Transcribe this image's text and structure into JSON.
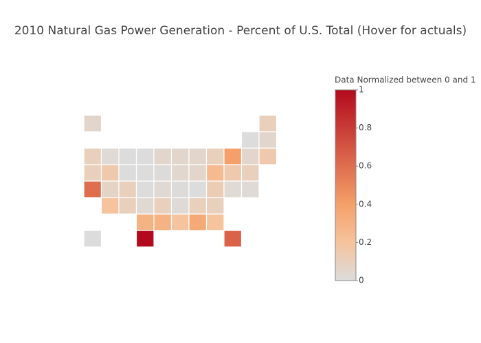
{
  "chart_data": {
    "type": "choropleth",
    "title": "2010 Natural Gas Power Generation - Percent of U.S. Total (Hover for actuals)",
    "colorbar_title": "Data Normalized between 0 and 1",
    "colorscale": [
      [
        0,
        "rgb(220,220,220)"
      ],
      [
        0.2,
        "rgb(245,195,157)"
      ],
      [
        0.4,
        "rgb(245,160,105)"
      ],
      [
        1,
        "rgb(178,10,28)"
      ]
    ],
    "zlim": [
      0,
      1
    ],
    "ticks": [
      0,
      0.2,
      0.4,
      0.6,
      0.8,
      1
    ],
    "locations": [
      "AK",
      "ME",
      "VT",
      "NH",
      "WA",
      "ID",
      "MT",
      "ND",
      "MN",
      "IL",
      "WI",
      "MI",
      "NY",
      "RI",
      "MA",
      "OR",
      "NV",
      "WY",
      "SD",
      "IA",
      "IN",
      "OH",
      "PA",
      "NJ",
      "CT",
      "CA",
      "UT",
      "CO",
      "NE",
      "MO",
      "KY",
      "WV",
      "VA",
      "MD",
      "DE",
      "AZ",
      "NM",
      "KS",
      "AR",
      "TN",
      "NC",
      "SC",
      "OK",
      "LA",
      "MS",
      "AL",
      "GA",
      "HI",
      "TX",
      "FL"
    ],
    "values": [
      0.05,
      0.1,
      0,
      0.05,
      0.1,
      0.02,
      0,
      0,
      0.05,
      0.05,
      0.05,
      0.1,
      0.4,
      0.05,
      0.15,
      0.1,
      0.15,
      0,
      0,
      0.01,
      0.04,
      0.05,
      0.25,
      0.15,
      0.1,
      0.6,
      0.07,
      0.1,
      0,
      0.03,
      0.01,
      0,
      0.12,
      0.02,
      0.02,
      0.2,
      0.1,
      0.03,
      0.1,
      0.02,
      0.1,
      0.1,
      0.3,
      0.3,
      0.2,
      0.35,
      0.2,
      0,
      1,
      0.65
    ]
  }
}
